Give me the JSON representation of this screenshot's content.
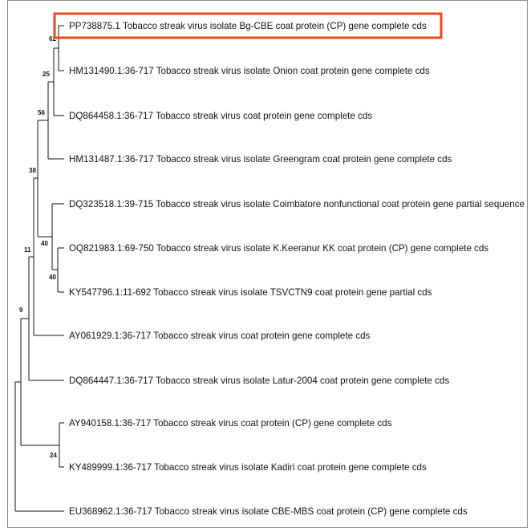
{
  "tree": {
    "highlight_color": "#e8491d",
    "leaves": [
      {
        "id": "l1",
        "label": "PP738875.1 Tobacco streak virus isolate Bg-CBE coat protein (CP) gene complete cds",
        "highlighted": true
      },
      {
        "id": "l2",
        "label": "HM131490.1:36-717 Tobacco streak virus isolate Onion coat protein gene complete cds"
      },
      {
        "id": "l3",
        "label": "DQ864458.1:36-717 Tobacco streak virus coat protein gene complete cds"
      },
      {
        "id": "l4",
        "label": "HM131487.1:36-717 Tobacco streak virus isolate Greengram coat protein gene complete cds"
      },
      {
        "id": "l5",
        "label": "DQ323518.1:39-715 Tobacco streak virus isolate Coimbatore nonfunctional coat protein gene partial sequence"
      },
      {
        "id": "l6",
        "label": "OQ821983.1:69-750 Tobacco streak virus isolate K.Keeranur KK coat protein (CP) gene complete cds"
      },
      {
        "id": "l7",
        "label": "KY547796.1:11-692 Tobacco streak virus isolate TSVCTN9 coat protein gene partial cds"
      },
      {
        "id": "l8",
        "label": "AY061929.1:36-717 Tobacco streak virus coat protein gene complete cds"
      },
      {
        "id": "l9",
        "label": "DQ864447.1:36-717 Tobacco streak virus isolate Latur-2004 coat protein gene complete cds"
      },
      {
        "id": "l10",
        "label": "AY940158.1:36-717 Tobacco streak virus coat protein (CP) gene complete cds"
      },
      {
        "id": "l11",
        "label": "KY489999.1:36-717 Tobacco streak virus isolate Kadiri coat protein gene complete cds"
      },
      {
        "id": "l12",
        "label": "EU368962.1:36-717 Tobacco streak virus isolate CBE-MBS coat protein (CP) gene complete cds"
      }
    ],
    "bootstrap_values": {
      "n62": "62",
      "n25": "25",
      "n56": "56",
      "n38": "38",
      "n40a": "40",
      "n40b": "40",
      "n11": "11",
      "n9": "9",
      "n24": "24"
    }
  }
}
